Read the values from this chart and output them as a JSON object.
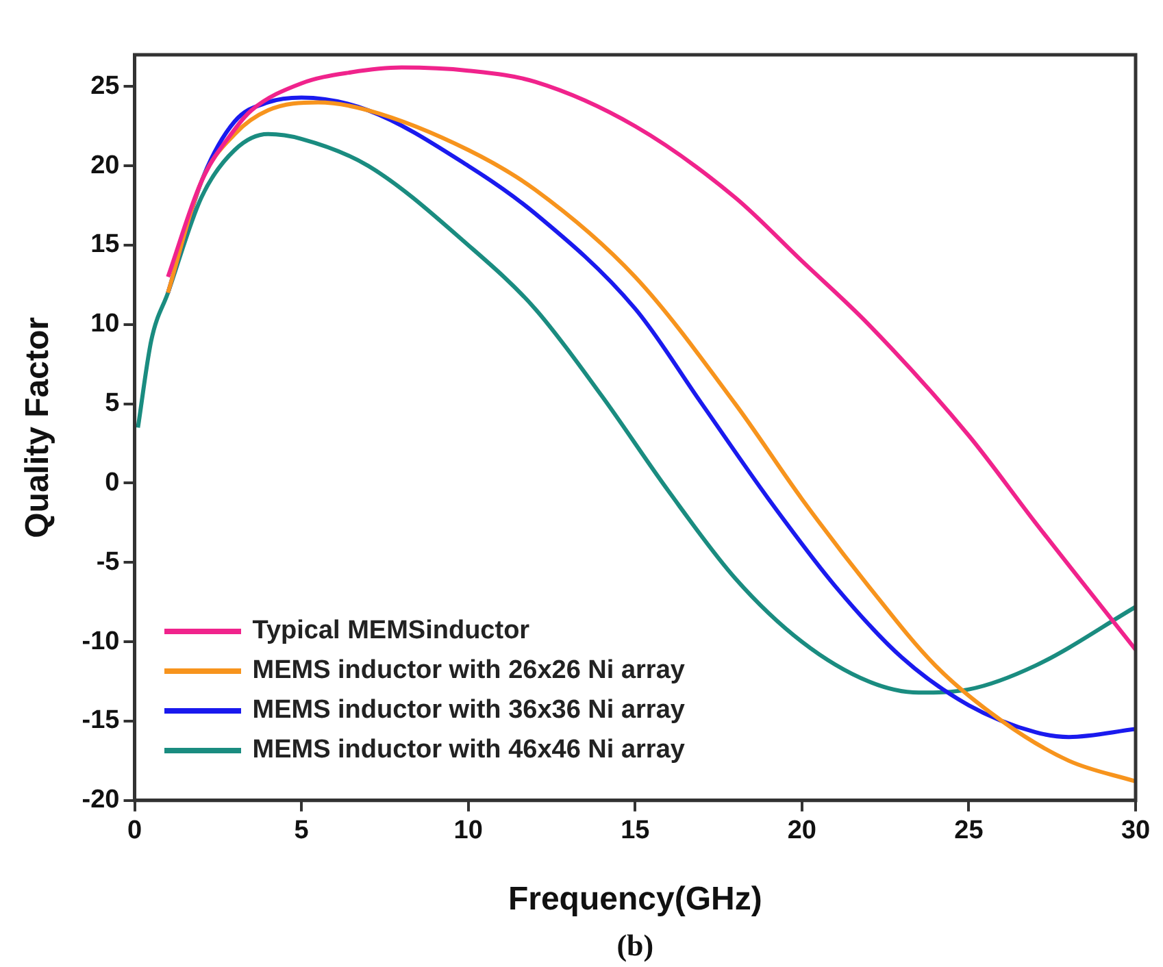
{
  "chart_data": {
    "type": "line",
    "xlabel": "Frequency(GHz)",
    "ylabel": "Quality Factor",
    "annotations": [
      "(b)"
    ],
    "xlim": [
      0,
      30
    ],
    "xticks": [
      0,
      5,
      10,
      15,
      20,
      25,
      30
    ],
    "ylim": [
      -20,
      27
    ],
    "yticks": [
      -20,
      -15,
      -10,
      -5,
      0,
      5,
      10,
      15,
      20,
      25
    ],
    "grid": false,
    "legend": "bottom left",
    "marker": "none",
    "line_style": "solid",
    "series": [
      {
        "name": "Typical MEMSinductor",
        "color": "#f0238c",
        "x": [
          1,
          2,
          3,
          3.5,
          5,
          6.5,
          8,
          10,
          12,
          15,
          18,
          20,
          22,
          25,
          27,
          30
        ],
        "values": [
          13,
          19,
          22.3,
          23.5,
          25.2,
          25.9,
          26.2,
          26,
          25.3,
          22.5,
          18,
          14,
          10,
          3,
          -2.5,
          -10.5
        ]
      },
      {
        "name": "MEMS inductor with 26x26 Ni array",
        "color": "#f7941d",
        "x": [
          1,
          2,
          3,
          4,
          5.5,
          7,
          10,
          12,
          15,
          18,
          20,
          22,
          24,
          26,
          28,
          30
        ],
        "values": [
          12,
          19,
          22,
          23.5,
          24,
          23.5,
          21,
          18.5,
          13,
          5,
          -1,
          -6.5,
          -11.5,
          -15,
          -17.5,
          -18.8
        ]
      },
      {
        "name": "MEMS inductor with 36x36 Ni array",
        "color": "#1a1aee",
        "x": [
          1,
          2,
          3,
          4,
          5,
          7,
          10,
          12,
          15,
          17,
          19,
          21,
          23,
          25,
          27,
          28,
          30
        ],
        "values": [
          12,
          19,
          22.8,
          24,
          24.3,
          23.5,
          20,
          17,
          11,
          5,
          -1,
          -6.5,
          -11,
          -14,
          -15.7,
          -16,
          -15.5
        ]
      },
      {
        "name": "MEMS inductor with 46x46 Ni array",
        "color": "#1a8c80",
        "x": [
          0.1,
          0.5,
          1,
          2,
          3,
          4,
          5,
          7,
          10,
          12,
          14,
          16,
          18,
          20,
          22,
          23.5,
          25,
          27,
          30
        ],
        "values": [
          3.5,
          9,
          12,
          18,
          21,
          22,
          21.7,
          20,
          15,
          11,
          5.5,
          -0.5,
          -6,
          -10,
          -12.5,
          -13.2,
          -13,
          -11.5,
          -7.8
        ]
      }
    ]
  }
}
